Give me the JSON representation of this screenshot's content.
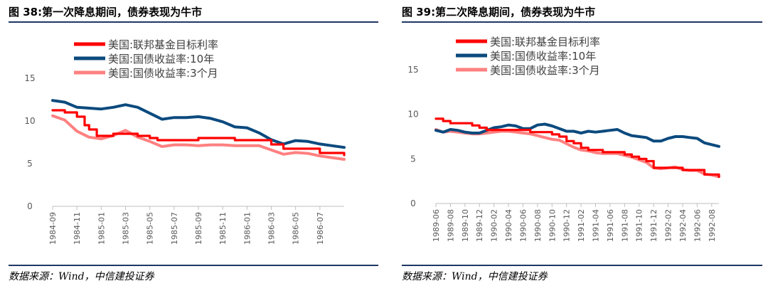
{
  "panels": [
    {
      "title": "图 38:第一次降息期间，债券表现为牛市",
      "source": "数据来源：Wind，中信建投证券"
    },
    {
      "title": "图 39:第二次降息期间，债券表现为牛市",
      "source": "数据来源：Wind，中信建投证券"
    }
  ],
  "colors": {
    "fed_rate": "#ff0000",
    "treasury_10y": "#0b4a7e",
    "treasury_3m": "#ff8080",
    "axis": "#bfbfbf",
    "tick_text": "#595959"
  },
  "chart_data": [
    {
      "type": "line",
      "title": "",
      "x_tick_labels": [
        "1984-09",
        "1984-11",
        "1985-01",
        "1985-03",
        "1985-05",
        "1985-07",
        "1985-09",
        "1985-11",
        "1986-01",
        "1986-03",
        "1986-05",
        "1986-07"
      ],
      "x_range": [
        "1984-09",
        "1986-09"
      ],
      "ylim": [
        0,
        15
      ],
      "y_ticks": [
        0,
        5,
        10,
        15
      ],
      "legend_placement": "top-center",
      "series": [
        {
          "name": "美国:联邦基金目标利率",
          "color": "#ff0000",
          "points": [
            [
              "1984-09",
              11.25
            ],
            [
              "1984-10",
              11.0
            ],
            [
              "1984-11",
              10.5
            ],
            [
              "1984-11-20",
              9.5
            ],
            [
              "1984-12",
              9.0
            ],
            [
              "1984-12-20",
              8.25
            ],
            [
              "1985-01",
              8.25
            ],
            [
              "1985-02",
              8.5
            ],
            [
              "1985-03",
              8.5
            ],
            [
              "1985-04",
              8.25
            ],
            [
              "1985-05",
              8.0
            ],
            [
              "1985-05-20",
              7.75
            ],
            [
              "1985-06",
              7.75
            ],
            [
              "1985-07",
              7.75
            ],
            [
              "1985-08",
              7.75
            ],
            [
              "1985-09",
              8.0
            ],
            [
              "1985-10",
              8.0
            ],
            [
              "1985-11",
              8.0
            ],
            [
              "1985-12",
              7.75
            ],
            [
              "1986-01",
              7.75
            ],
            [
              "1986-02",
              7.75
            ],
            [
              "1986-03",
              7.25
            ],
            [
              "1986-04",
              6.75
            ],
            [
              "1986-05",
              6.75
            ],
            [
              "1986-06",
              6.75
            ],
            [
              "1986-07",
              6.25
            ],
            [
              "1986-08",
              6.25
            ],
            [
              "1986-09",
              6.0
            ]
          ]
        },
        {
          "name": "美国:国债收益率:10年",
          "color": "#0b4a7e",
          "points": [
            [
              "1984-09",
              12.4
            ],
            [
              "1984-10",
              12.2
            ],
            [
              "1984-11",
              11.6
            ],
            [
              "1984-12",
              11.5
            ],
            [
              "1985-01",
              11.4
            ],
            [
              "1985-02",
              11.6
            ],
            [
              "1985-03",
              11.9
            ],
            [
              "1985-04",
              11.6
            ],
            [
              "1985-05",
              10.9
            ],
            [
              "1985-06",
              10.2
            ],
            [
              "1985-07",
              10.4
            ],
            [
              "1985-08",
              10.4
            ],
            [
              "1985-09",
              10.5
            ],
            [
              "1985-10",
              10.3
            ],
            [
              "1985-11",
              9.9
            ],
            [
              "1985-12",
              9.3
            ],
            [
              "1986-01",
              9.2
            ],
            [
              "1986-02",
              8.6
            ],
            [
              "1986-03",
              7.8
            ],
            [
              "1986-04",
              7.3
            ],
            [
              "1986-05",
              7.7
            ],
            [
              "1986-06",
              7.6
            ],
            [
              "1986-07",
              7.3
            ],
            [
              "1986-08",
              7.1
            ],
            [
              "1986-09",
              6.9
            ]
          ]
        },
        {
          "name": "美国:国债收益率:3个月",
          "color": "#ff8080",
          "points": [
            [
              "1984-09",
              10.6
            ],
            [
              "1984-10",
              10.1
            ],
            [
              "1984-11",
              8.8
            ],
            [
              "1984-12",
              8.1
            ],
            [
              "1985-01",
              7.9
            ],
            [
              "1985-02",
              8.3
            ],
            [
              "1985-03",
              8.9
            ],
            [
              "1985-04",
              8.1
            ],
            [
              "1985-05",
              7.6
            ],
            [
              "1985-06",
              7.0
            ],
            [
              "1985-07",
              7.2
            ],
            [
              "1985-08",
              7.2
            ],
            [
              "1985-09",
              7.1
            ],
            [
              "1985-10",
              7.2
            ],
            [
              "1985-11",
              7.2
            ],
            [
              "1985-12",
              7.1
            ],
            [
              "1986-01",
              7.1
            ],
            [
              "1986-02",
              7.1
            ],
            [
              "1986-03",
              6.6
            ],
            [
              "1986-04",
              6.1
            ],
            [
              "1986-05",
              6.3
            ],
            [
              "1986-06",
              6.2
            ],
            [
              "1986-07",
              5.9
            ],
            [
              "1986-08",
              5.7
            ],
            [
              "1986-09",
              5.5
            ]
          ]
        }
      ]
    },
    {
      "type": "line",
      "title": "",
      "x_tick_labels": [
        "1989-06",
        "1989-08",
        "1989-10",
        "1989-12",
        "1990-02",
        "1990-04",
        "1990-06",
        "1990-08",
        "1990-10",
        "1990-12",
        "1991-02",
        "1991-04",
        "1991-06",
        "1991-08",
        "1991-10",
        "1991-12",
        "1992-02",
        "1992-04",
        "1992-06",
        "1992-08"
      ],
      "x_range": [
        "1989-06",
        "1992-09"
      ],
      "ylim": [
        0,
        15
      ],
      "y_ticks": [
        0,
        5,
        10,
        15
      ],
      "legend_placement": "top-center",
      "series": [
        {
          "name": "美国:联邦基金目标利率",
          "color": "#ff0000",
          "points": [
            [
              "1989-06",
              9.5
            ],
            [
              "1989-07",
              9.25
            ],
            [
              "1989-08",
              9.0
            ],
            [
              "1989-10",
              9.0
            ],
            [
              "1989-11",
              8.75
            ],
            [
              "1989-12",
              8.5
            ],
            [
              "1990-01",
              8.25
            ],
            [
              "1990-07",
              8.0
            ],
            [
              "1990-10",
              7.75
            ],
            [
              "1990-11",
              7.5
            ],
            [
              "1990-12",
              7.0
            ],
            [
              "1991-01",
              6.75
            ],
            [
              "1991-02",
              6.25
            ],
            [
              "1991-03",
              6.0
            ],
            [
              "1991-05",
              5.75
            ],
            [
              "1991-07",
              5.75
            ],
            [
              "1991-08",
              5.5
            ],
            [
              "1991-09",
              5.25
            ],
            [
              "1991-10",
              5.0
            ],
            [
              "1991-11",
              4.75
            ],
            [
              "1991-12",
              4.0
            ],
            [
              "1992-01",
              4.0
            ],
            [
              "1992-03",
              4.0
            ],
            [
              "1992-04",
              3.75
            ],
            [
              "1992-06",
              3.75
            ],
            [
              "1992-07",
              3.25
            ],
            [
              "1992-09",
              3.0
            ]
          ]
        },
        {
          "name": "美国:国债收益率:10年",
          "color": "#0b4a7e",
          "points": [
            [
              "1989-06",
              8.2
            ],
            [
              "1989-07",
              8.0
            ],
            [
              "1989-08",
              8.3
            ],
            [
              "1989-09",
              8.2
            ],
            [
              "1989-10",
              8.0
            ],
            [
              "1989-11",
              7.9
            ],
            [
              "1989-12",
              7.9
            ],
            [
              "1990-01",
              8.2
            ],
            [
              "1990-02",
              8.5
            ],
            [
              "1990-03",
              8.6
            ],
            [
              "1990-04",
              8.8
            ],
            [
              "1990-05",
              8.7
            ],
            [
              "1990-06",
              8.4
            ],
            [
              "1990-07",
              8.4
            ],
            [
              "1990-08",
              8.8
            ],
            [
              "1990-09",
              8.9
            ],
            [
              "1990-10",
              8.7
            ],
            [
              "1990-11",
              8.4
            ],
            [
              "1990-12",
              8.1
            ],
            [
              "1991-01",
              8.1
            ],
            [
              "1991-02",
              7.9
            ],
            [
              "1991-03",
              8.1
            ],
            [
              "1991-04",
              8.0
            ],
            [
              "1991-05",
              8.1
            ],
            [
              "1991-06",
              8.2
            ],
            [
              "1991-07",
              8.3
            ],
            [
              "1991-08",
              7.9
            ],
            [
              "1991-09",
              7.6
            ],
            [
              "1991-10",
              7.5
            ],
            [
              "1991-11",
              7.4
            ],
            [
              "1991-12",
              7.0
            ],
            [
              "1992-01",
              7.0
            ],
            [
              "1992-02",
              7.3
            ],
            [
              "1992-03",
              7.5
            ],
            [
              "1992-04",
              7.5
            ],
            [
              "1992-05",
              7.4
            ],
            [
              "1992-06",
              7.3
            ],
            [
              "1992-07",
              6.8
            ],
            [
              "1992-08",
              6.6
            ],
            [
              "1992-09",
              6.4
            ]
          ]
        },
        {
          "name": "美国:国债收益率:3个月",
          "color": "#ff8080",
          "points": [
            [
              "1989-06",
              8.3
            ],
            [
              "1989-07",
              8.0
            ],
            [
              "1989-08",
              8.1
            ],
            [
              "1989-09",
              8.0
            ],
            [
              "1989-10",
              7.9
            ],
            [
              "1989-11",
              7.8
            ],
            [
              "1989-12",
              7.8
            ],
            [
              "1990-01",
              7.9
            ],
            [
              "1990-02",
              8.0
            ],
            [
              "1990-03",
              8.1
            ],
            [
              "1990-04",
              8.1
            ],
            [
              "1990-05",
              8.0
            ],
            [
              "1990-06",
              7.9
            ],
            [
              "1990-07",
              7.8
            ],
            [
              "1990-08",
              7.6
            ],
            [
              "1990-09",
              7.4
            ],
            [
              "1990-10",
              7.2
            ],
            [
              "1990-11",
              7.1
            ],
            [
              "1990-12",
              6.7
            ],
            [
              "1991-01",
              6.3
            ],
            [
              "1991-02",
              6.0
            ],
            [
              "1991-03",
              5.9
            ],
            [
              "1991-04",
              5.7
            ],
            [
              "1991-05",
              5.6
            ],
            [
              "1991-06",
              5.6
            ],
            [
              "1991-07",
              5.6
            ],
            [
              "1991-08",
              5.4
            ],
            [
              "1991-09",
              5.2
            ],
            [
              "1991-10",
              4.9
            ],
            [
              "1991-11",
              4.6
            ],
            [
              "1991-12",
              4.0
            ],
            [
              "1992-01",
              3.9
            ],
            [
              "1992-02",
              4.0
            ],
            [
              "1992-03",
              4.1
            ],
            [
              "1992-04",
              3.8
            ],
            [
              "1992-05",
              3.7
            ],
            [
              "1992-06",
              3.7
            ],
            [
              "1992-07",
              3.3
            ],
            [
              "1992-08",
              3.2
            ],
            [
              "1992-09",
              3.0
            ]
          ]
        }
      ]
    }
  ]
}
